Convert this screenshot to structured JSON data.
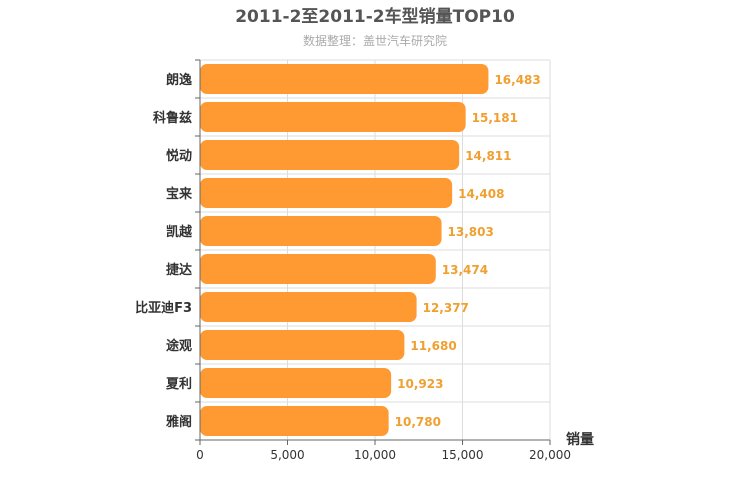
{
  "chart_data": {
    "type": "bar",
    "orientation": "horizontal",
    "title": "2011-2至2011-2车型销量TOP10",
    "subtitle": "数据整理：盖世汽车研究院",
    "categories": [
      "朗逸",
      "科鲁兹",
      "悦动",
      "宝来",
      "凯越",
      "捷达",
      "比亚迪F3",
      "途观",
      "夏利",
      "雅阁"
    ],
    "values": [
      16483,
      15181,
      14811,
      14408,
      13803,
      13474,
      12377,
      11680,
      10923,
      10780
    ],
    "value_labels": [
      "16,483",
      "15,181",
      "14,811",
      "14,408",
      "13,803",
      "13,474",
      "12,377",
      "11,680",
      "10,923",
      "10,780"
    ],
    "xticks": [
      "0",
      "5,000",
      "10,000",
      "15,000",
      "20,000"
    ],
    "xlim": [
      0,
      20000
    ],
    "xlabel": "销量",
    "grid": true,
    "bar_color": "#ff9a33",
    "label_color": "#f0a030"
  }
}
